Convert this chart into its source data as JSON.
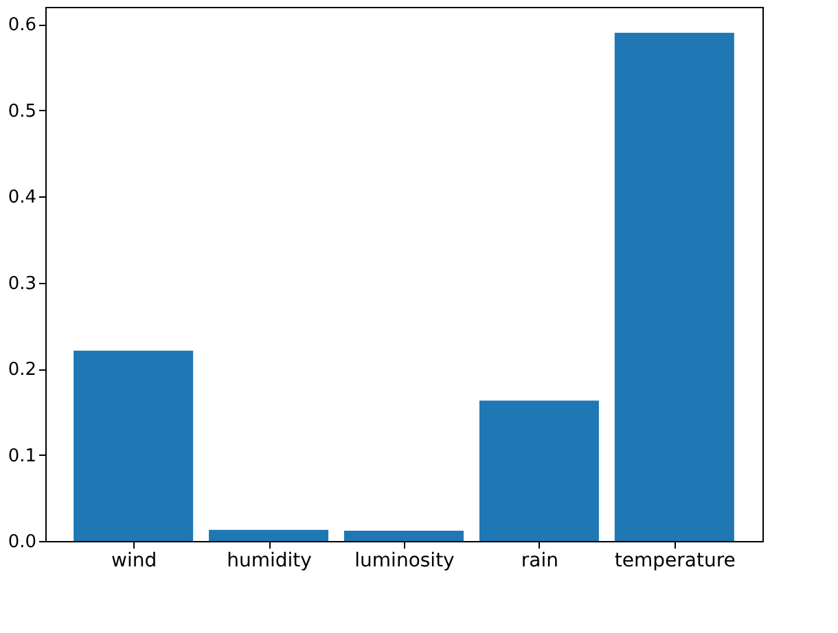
{
  "chart_data": {
    "type": "bar",
    "categories": [
      "wind",
      "humidity",
      "luminosity",
      "rain",
      "temperature"
    ],
    "values": [
      0.221,
      0.013,
      0.012,
      0.163,
      0.59
    ],
    "color": "#1f77b4",
    "ylim": [
      0,
      0.62
    ],
    "yticks": [
      {
        "value": 0,
        "label": "0.0"
      },
      {
        "value": 0.1,
        "label": "0.1"
      },
      {
        "value": 0.2,
        "label": "0.2"
      },
      {
        "value": 0.3,
        "label": "0.3"
      },
      {
        "value": 0.4,
        "label": "0.4"
      },
      {
        "value": 0.5,
        "label": "0.5"
      },
      {
        "value": 0.6,
        "label": "0.6"
      }
    ],
    "grid": false
  }
}
